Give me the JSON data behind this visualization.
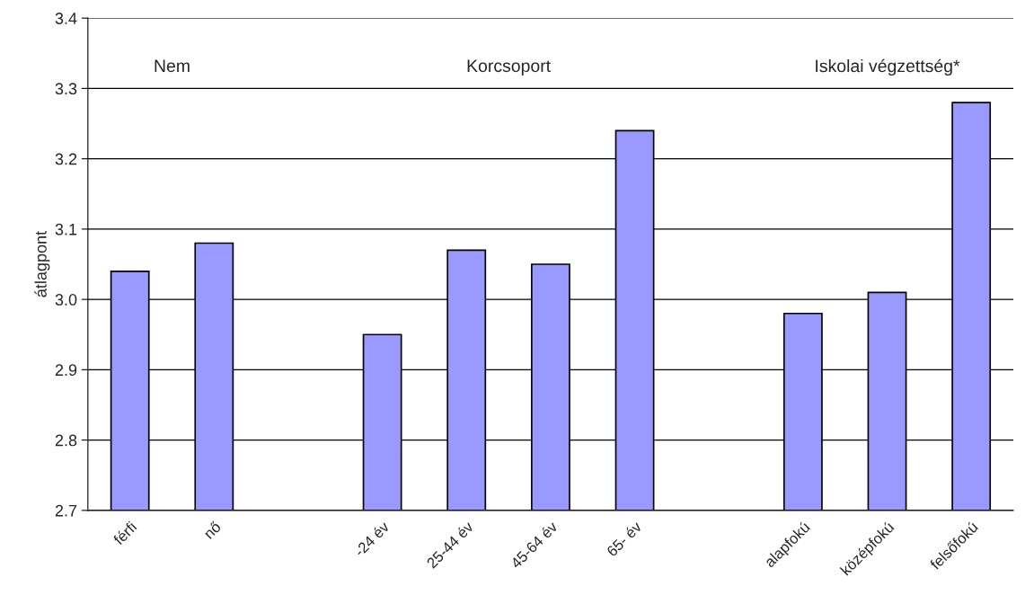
{
  "chart_data": {
    "type": "bar",
    "ylabel": "átlagpont",
    "categories": [
      "férfi",
      "nő",
      null,
      "-24 év",
      "25-44 év",
      "45-64 év",
      "65- év",
      null,
      "alapfokú",
      "középfokú",
      "felsőfokú"
    ],
    "values": [
      3.04,
      3.08,
      null,
      2.95,
      3.07,
      3.05,
      3.24,
      null,
      2.98,
      3.01,
      3.28
    ],
    "color": "#9999ff",
    "ylim": [
      2.7,
      3.4
    ],
    "yticks": [
      {
        "value": 2.7,
        "label": "2.7"
      },
      {
        "value": 2.8,
        "label": "2.8"
      },
      {
        "value": 2.9,
        "label": "2.9"
      },
      {
        "value": 3.0,
        "label": "3.0"
      },
      {
        "value": 3.1,
        "label": "3.1"
      },
      {
        "value": 3.2,
        "label": "3.2"
      },
      {
        "value": 3.3,
        "label": "3.3"
      },
      {
        "value": 3.4,
        "label": "3.4"
      }
    ],
    "grid": "y",
    "annotations": [
      "Nem",
      "Korcsoport",
      "Iskolai végzettség*"
    ]
  }
}
